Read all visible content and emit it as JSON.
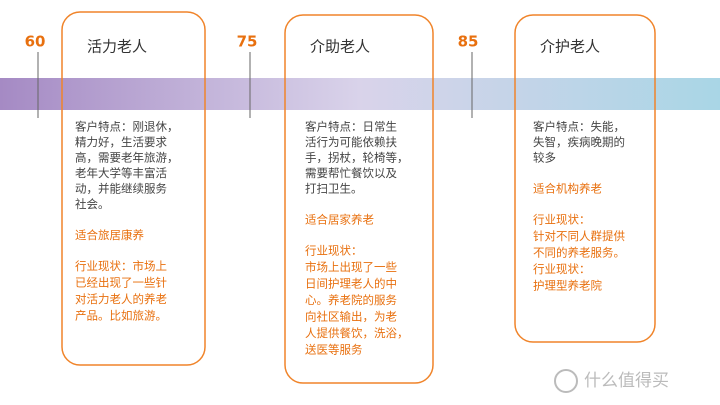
{
  "columns": [
    {
      "age": "60",
      "title": "活力老人",
      "description": [
        "客户特点：刚退休，",
        "精力好，生活要求",
        "高，需要老年旅游，",
        "老年大学等丰富活",
        "动，并能继续服务",
        "社会。"
      ],
      "suitable": "适合旅居康养",
      "status": [
        "行业现状：市场上",
        "已经出现了一些针",
        "对活力老人的养老",
        "产品。比如旅游。"
      ]
    },
    {
      "age": "75",
      "title": "介助老人",
      "description": [
        "客户特点：日常生",
        "活行为可能依赖扶",
        "手，拐杖，轮椅等，",
        "需要帮忙餐饮以及",
        "打扫卫生。"
      ],
      "suitable": "适合居家养老",
      "status": [
        "行业现状：",
        "市场上出现了一些",
        "日间护理老人的中",
        "心。养老院的服务",
        "向社区输出，为老",
        "人提供餐饮，洗浴，",
        "送医等服务"
      ]
    },
    {
      "age": "85",
      "title": "介护老人",
      "description": [
        "客户特点：失能，",
        "失智，疾病晚期的",
        "较多"
      ],
      "suitable": "适合机构养老",
      "status": [
        "行业现状：",
        "针对不同人群提供",
        "不同的养老服务。",
        "行业现状：",
        "护理型养老院"
      ]
    }
  ],
  "watermark": "什么值得买"
}
